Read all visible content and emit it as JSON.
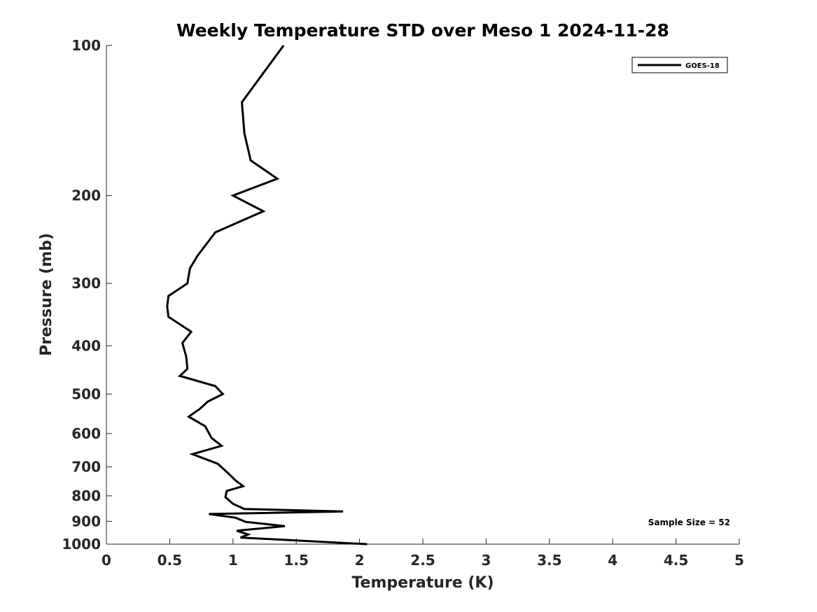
{
  "chart_data": {
    "type": "line",
    "title": "Weekly Temperature STD over Meso 1 2024-11-28",
    "xlabel": "Temperature (K)",
    "ylabel": "Pressure (mb)",
    "xlim": [
      0,
      5
    ],
    "ylim": [
      100,
      1000
    ],
    "y_scale": "log",
    "y_reversed": true,
    "x_ticks": [
      0,
      0.5,
      1,
      1.5,
      2,
      2.5,
      3,
      3.5,
      4,
      4.5,
      5
    ],
    "x_tick_labels": [
      "0",
      "0.5",
      "1",
      "1.5",
      "2",
      "2.5",
      "3",
      "3.5",
      "4",
      "4.5",
      "5"
    ],
    "y_ticks": [
      100,
      200,
      300,
      400,
      500,
      600,
      700,
      800,
      900,
      1000
    ],
    "y_tick_labels": [
      "100",
      "200",
      "300",
      "400",
      "500",
      "600",
      "700",
      "800",
      "900",
      "1000"
    ],
    "grid": false,
    "legend": {
      "position": "top-right",
      "entries": [
        "GOES-18"
      ]
    },
    "annotation": "Sample Size = 52",
    "series": [
      {
        "name": "GOES-18",
        "color": "#000000",
        "x": [
          1.4,
          1.07,
          1.09,
          1.14,
          1.35,
          1.0,
          1.24,
          0.86,
          0.72,
          0.66,
          0.64,
          0.49,
          0.48,
          0.49,
          0.67,
          0.6,
          0.63,
          0.64,
          0.58,
          0.86,
          0.92,
          0.8,
          0.74,
          0.65,
          0.78,
          0.83,
          0.91,
          0.68,
          0.88,
          0.96,
          1.02,
          1.08,
          0.95,
          0.94,
          1.0,
          1.09,
          1.87,
          0.81,
          1.02,
          1.1,
          1.41,
          1.03,
          1.12,
          1.06,
          2.06
        ],
        "y": [
          100,
          130,
          150,
          170,
          185,
          200,
          215,
          237,
          264,
          280,
          300,
          318,
          334,
          350,
          375,
          395,
          420,
          445,
          460,
          482,
          500,
          518,
          535,
          555,
          580,
          612,
          635,
          660,
          690,
          720,
          745,
          765,
          782,
          805,
          830,
          850,
          860,
          870,
          885,
          902,
          920,
          940,
          956,
          970,
          1000
        ]
      }
    ]
  }
}
